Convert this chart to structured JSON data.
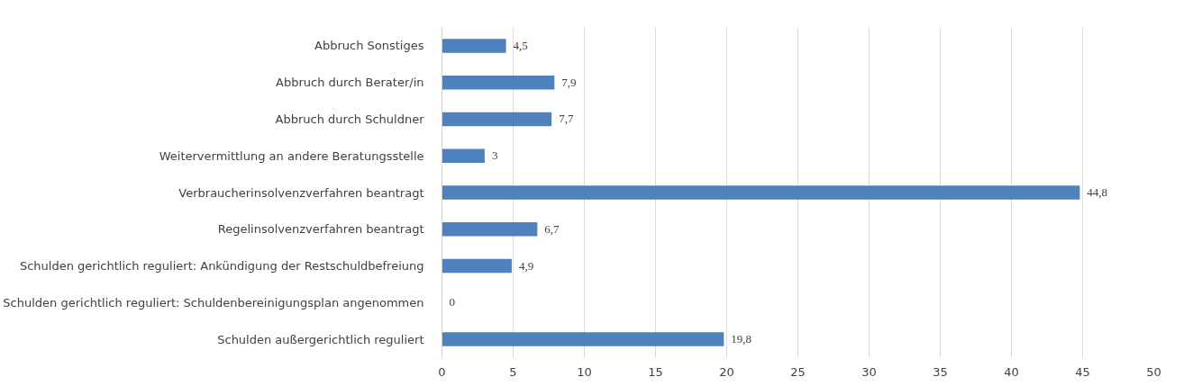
{
  "chart_data": {
    "type": "bar",
    "orientation": "horizontal",
    "categories": [
      "Abbruch Sonstiges",
      "Abbruch durch Berater/in",
      "Abbruch durch Schuldner",
      "Weitervermittlung an andere Beratungsstelle",
      "Verbraucherinsolvenzverfahren beantragt",
      "Regelinsolvenzverfahren beantragt",
      "Schulden gerichtlich reguliert: Ankündigung der Restschuldbefreiung",
      "Schulden gerichtlich reguliert: Schuldenbereinigungsplan angenommen",
      "Schulden außergerichtlich reguliert"
    ],
    "values": [
      4.5,
      7.9,
      7.7,
      3,
      44.8,
      6.7,
      4.9,
      0,
      19.8
    ],
    "value_labels": [
      "4,5",
      "7,9",
      "7,7",
      "3",
      "44,8",
      "6,7",
      "4,9",
      "0",
      "19,8"
    ],
    "color": "#4f81bd",
    "xlim": [
      0,
      50
    ],
    "xticks": [
      0,
      5,
      10,
      15,
      20,
      25,
      30,
      35,
      40,
      45,
      50
    ],
    "grid": "x"
  }
}
